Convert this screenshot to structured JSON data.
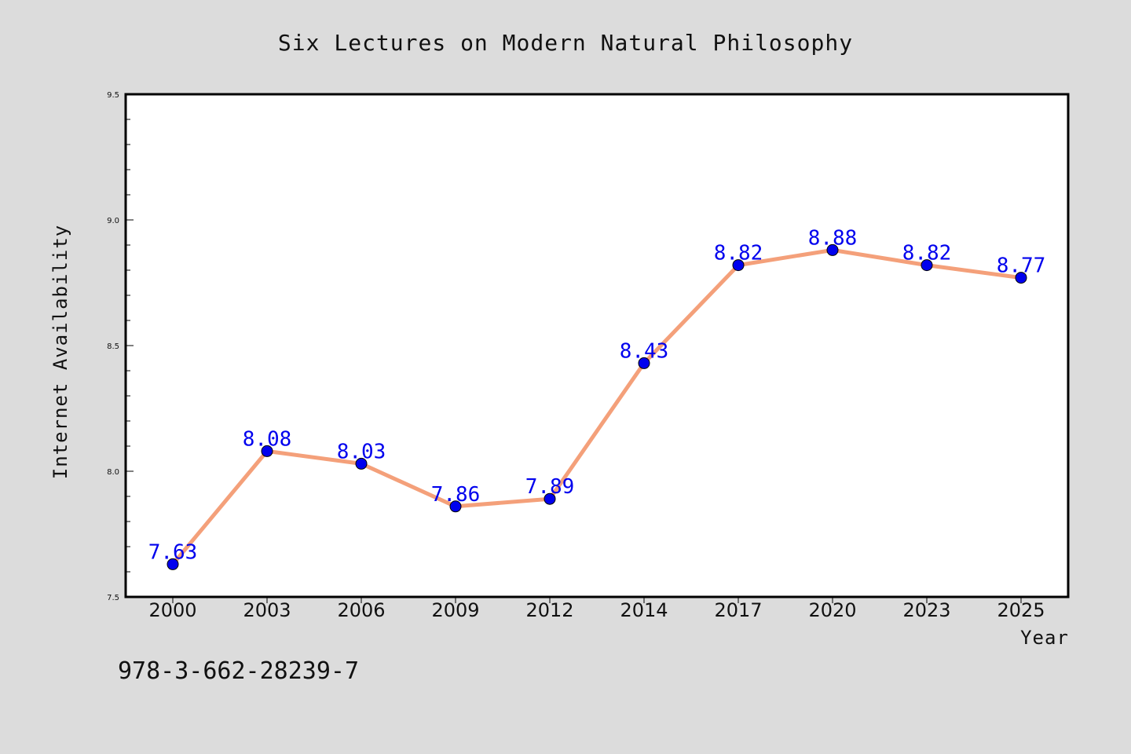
{
  "chart_data": {
    "type": "line",
    "title": "Six Lectures on Modern Natural Philosophy",
    "xlabel": "Year",
    "ylabel": "Internet Availability",
    "categories": [
      "2000",
      "2003",
      "2006",
      "2009",
      "2012",
      "2014",
      "2017",
      "2020",
      "2023",
      "2025"
    ],
    "series": [
      {
        "values": [
          7.63,
          8.08,
          8.03,
          7.86,
          7.89,
          8.43,
          8.82,
          8.88,
          8.82,
          8.77
        ],
        "data_labels": [
          "7.63",
          "8.08",
          "8.03",
          "7.86",
          "7.89",
          "8.43",
          "8.82",
          "8.88",
          "8.82",
          "8.77"
        ],
        "line_color": "#f4a07a",
        "marker_color": "#0000ee",
        "label_color": "#0000ee"
      }
    ],
    "ylim": [
      7.5,
      9.5
    ],
    "yticks": [
      "7.5",
      "8.0",
      "8.5",
      "9.0",
      "9.5"
    ],
    "ytick_values": [
      7.5,
      8.0,
      8.5,
      9.0,
      9.5
    ],
    "minor_y_step": 0.1,
    "grid": false,
    "legend": "none"
  },
  "footnote": "978-3-662-28239-7",
  "colors": {
    "background": "#dcdcdc",
    "plot_background": "#ffffff",
    "axis": "#000000"
  }
}
